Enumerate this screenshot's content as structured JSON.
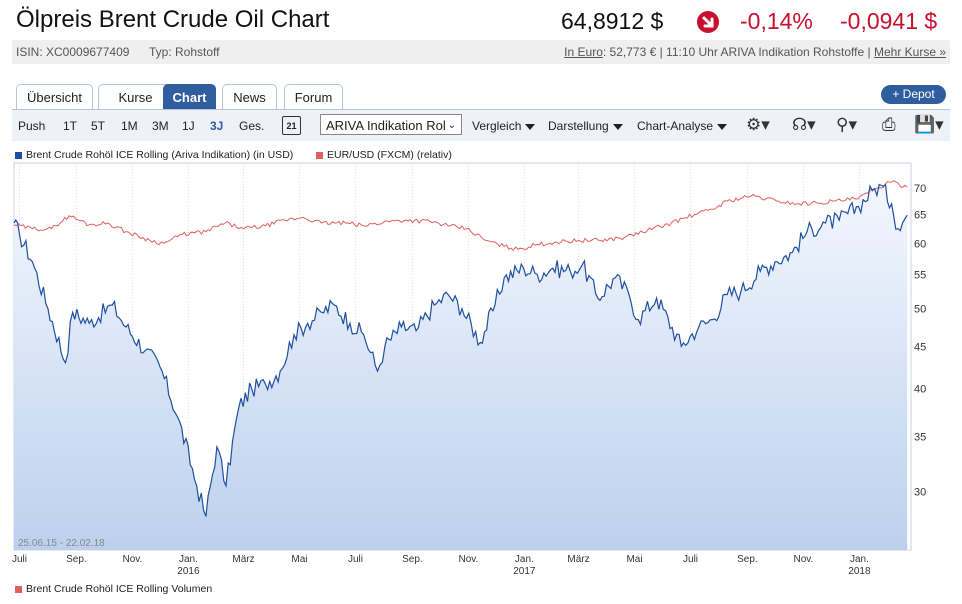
{
  "header": {
    "title": "Ölpreis Brent Crude Oil Chart",
    "price": "64,8912 $",
    "change_pct": "-0,14%",
    "change_abs": "-0,0941 $",
    "isin": "ISIN: XC0009677409",
    "type": "Typ: Rohstoff",
    "meta_link1": "In Euro",
    "meta_text": ": 52,773 € | 11:10 Uhr ARIVA Indikation Rohstoffe |",
    "meta_link2": "Mehr Kurse »"
  },
  "tabs": [
    {
      "label": "Übersicht"
    },
    {
      "label": "Kurse"
    },
    {
      "label": "Chart"
    },
    {
      "label": "News"
    },
    {
      "label": "Forum"
    }
  ],
  "depot_button": "+ Depot",
  "toolbar": {
    "ranges": [
      "Push",
      "1T",
      "5T",
      "1M",
      "3M",
      "1J",
      "3J",
      "Ges."
    ],
    "active_range": "3J",
    "calendar_day": "21",
    "source_select": "ARIVA Indikation Rol",
    "menus": [
      "Vergleich",
      "Darstellung",
      "Chart-Analyse"
    ]
  },
  "legend": {
    "series1": "Brent Crude Rohöl ICE Rolling (Ariva Indikation) (in USD)",
    "series2": "EUR/USD (FXCM) (relativ)",
    "volume": "Brent Crude Rohöl ICE Rolling Volumen"
  },
  "colors": {
    "accent": "#2f5d9e",
    "negative": "#c8102e",
    "series1": "#1f4fa0",
    "series2": "#e06060",
    "area_top": "#f3f7fd",
    "area_bottom": "#bcd0ee"
  },
  "chart_data": {
    "type": "line",
    "date_range_label": "25.06.15 - 22.02.18",
    "x_ticks": [
      "Juli",
      "Sep.",
      "Nov.",
      "Jan.",
      "März",
      "Mai",
      "Juli",
      "Sep.",
      "Nov.",
      "Jan.",
      "März",
      "Mai",
      "Juli",
      "Sep.",
      "Nov.",
      "Jan."
    ],
    "x_year_labels": [
      {
        "tick": 3,
        "year": "2016"
      },
      {
        "tick": 9,
        "year": "2017"
      },
      {
        "tick": 15,
        "year": "2018"
      }
    ],
    "y_ticks": [
      30,
      35,
      40,
      45,
      50,
      55,
      60,
      65,
      70
    ],
    "y_scale": "log",
    "ylim": [
      26,
      72
    ],
    "series": [
      {
        "name": "Brent Crude Rohöl ICE Rolling (Ariva Indikation) (in USD)",
        "x": [
          "2015-06-25",
          "2015-07-01",
          "2015-07-15",
          "2015-08-01",
          "2015-08-20",
          "2015-08-28",
          "2015-09-15",
          "2015-10-10",
          "2015-10-25",
          "2015-11-15",
          "2015-12-01",
          "2015-12-20",
          "2016-01-10",
          "2016-01-20",
          "2016-02-01",
          "2016-02-11",
          "2016-02-25",
          "2016-03-10",
          "2016-03-25",
          "2016-04-10",
          "2016-04-25",
          "2016-05-10",
          "2016-05-25",
          "2016-06-08",
          "2016-06-25",
          "2016-07-10",
          "2016-07-25",
          "2016-08-02",
          "2016-08-20",
          "2016-09-05",
          "2016-09-25",
          "2016-10-10",
          "2016-10-25",
          "2016-11-14",
          "2016-11-30",
          "2016-12-10",
          "2016-12-31",
          "2017-01-15",
          "2017-02-01",
          "2017-02-20",
          "2017-03-05",
          "2017-03-22",
          "2017-04-10",
          "2017-04-25",
          "2017-05-05",
          "2017-05-25",
          "2017-06-21",
          "2017-07-10",
          "2017-07-25",
          "2017-08-10",
          "2017-08-25",
          "2017-09-15",
          "2017-10-01",
          "2017-10-20",
          "2017-11-05",
          "2017-11-25",
          "2017-12-10",
          "2017-12-31",
          "2018-01-15",
          "2018-01-25",
          "2018-02-05",
          "2018-02-12",
          "2018-02-22"
        ],
        "values": [
          63.5,
          61.5,
          57.0,
          50.0,
          43.0,
          49.5,
          48.0,
          50.5,
          47.5,
          44.5,
          42.5,
          37.0,
          30.5,
          28.0,
          34.0,
          30.5,
          38.0,
          40.0,
          40.5,
          42.0,
          46.5,
          48.0,
          49.5,
          50.5,
          48.0,
          46.5,
          42.0,
          45.0,
          47.5,
          47.0,
          50.5,
          52.0,
          50.0,
          45.5,
          50.5,
          54.5,
          56.0,
          55.0,
          56.0,
          55.5,
          56.5,
          51.5,
          54.5,
          52.0,
          48.5,
          51.5,
          45.0,
          47.5,
          48.5,
          52.0,
          52.5,
          55.5,
          57.0,
          58.5,
          62.0,
          63.5,
          64.0,
          66.5,
          69.5,
          70.5,
          67.0,
          62.5,
          64.9
        ]
      },
      {
        "name": "EUR/USD (FXCM) (relativ)",
        "x": [
          "2015-06-25",
          "2015-07-15",
          "2015-08-05",
          "2015-08-24",
          "2015-09-15",
          "2015-10-05",
          "2015-10-25",
          "2015-11-20",
          "2015-12-05",
          "2015-12-25",
          "2016-01-20",
          "2016-02-10",
          "2016-03-01",
          "2016-03-25",
          "2016-04-15",
          "2016-05-05",
          "2016-05-25",
          "2016-06-20",
          "2016-07-10",
          "2016-08-05",
          "2016-08-25",
          "2016-09-20",
          "2016-10-10",
          "2016-10-30",
          "2016-11-20",
          "2016-12-10",
          "2016-12-25",
          "2017-01-15",
          "2017-02-05",
          "2017-03-01",
          "2017-03-25",
          "2017-04-20",
          "2017-05-15",
          "2017-06-10",
          "2017-07-05",
          "2017-07-25",
          "2017-08-10",
          "2017-09-05",
          "2017-10-05",
          "2017-10-25",
          "2017-11-15",
          "2017-12-05",
          "2017-12-31",
          "2018-01-20",
          "2018-02-05",
          "2018-02-22"
        ],
        "values": [
          63.2,
          62.5,
          62.5,
          64.8,
          63.2,
          63.5,
          62.0,
          60.5,
          60.0,
          61.5,
          62.0,
          63.5,
          62.5,
          63.0,
          64.0,
          64.5,
          63.5,
          63.5,
          63.0,
          63.8,
          64.0,
          63.8,
          63.0,
          62.5,
          60.5,
          59.5,
          59.0,
          59.8,
          60.2,
          60.5,
          60.5,
          61.0,
          62.2,
          63.5,
          65.0,
          66.0,
          67.5,
          68.5,
          67.5,
          67.0,
          67.2,
          67.5,
          68.0,
          70.0,
          71.2,
          70.2
        ]
      }
    ],
    "grid": "vertical dotted",
    "legend_position": "top-left"
  }
}
